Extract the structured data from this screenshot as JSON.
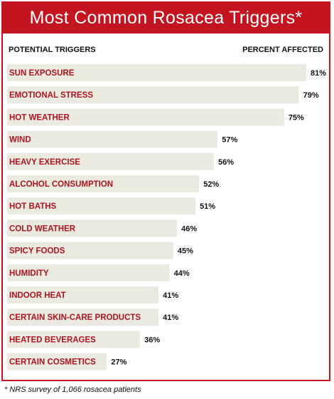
{
  "title": "Most Common Rosacea Triggers*",
  "header": {
    "left": "POTENTIAL TRIGGERS",
    "right": "PERCENT AFFECTED"
  },
  "footnote": "* NRS survey of 1,066 rosacea patients",
  "colors": {
    "accent": "#c41420",
    "bar": "#ebeae0",
    "label": "#b0141e",
    "value": "#111111"
  },
  "chart_data": {
    "type": "bar",
    "orientation": "horizontal",
    "title": "Most Common Rosacea Triggers*",
    "xlabel": "PERCENT AFFECTED",
    "ylabel": "POTENTIAL TRIGGERS",
    "xlim": [
      0,
      100
    ],
    "grid": false,
    "categories": [
      "SUN EXPOSURE",
      "EMOTIONAL STRESS",
      "HOT WEATHER",
      "WIND",
      "HEAVY EXERCISE",
      "ALCOHOL CONSUMPTION",
      "HOT BATHS",
      "COLD WEATHER",
      "SPICY FOODS",
      "HUMIDITY",
      "INDOOR HEAT",
      "CERTAIN SKIN-CARE PRODUCTS",
      "HEATED BEVERAGES",
      "CERTAIN COSMETICS"
    ],
    "values": [
      81,
      79,
      75,
      57,
      56,
      52,
      51,
      46,
      45,
      44,
      41,
      41,
      36,
      27
    ],
    "value_labels": [
      "81%",
      "79%",
      "75%",
      "57%",
      "56%",
      "52%",
      "51%",
      "46%",
      "45%",
      "44%",
      "41%",
      "41%",
      "36%",
      "27%"
    ]
  }
}
